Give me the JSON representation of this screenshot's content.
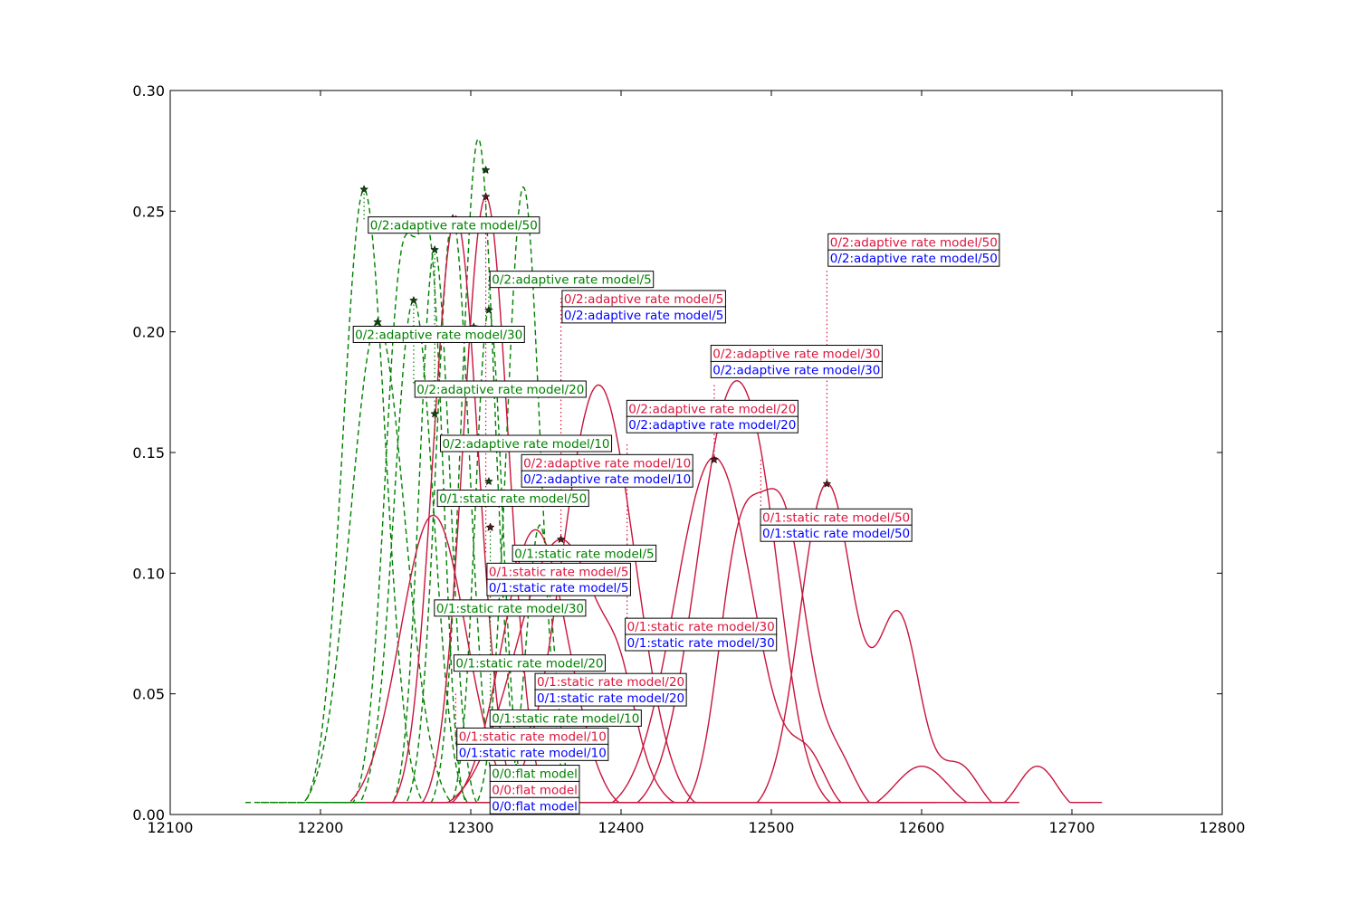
{
  "chart_data": {
    "type": "line",
    "title": "",
    "xlabel": "",
    "ylabel": "",
    "xlim": [
      12100,
      12800
    ],
    "ylim": [
      0,
      0.3
    ],
    "x_ticks": [
      "12100",
      "12200",
      "12300",
      "12400",
      "12500",
      "12600",
      "12700",
      "12800"
    ],
    "y_ticks": [
      "0.00",
      "0.05",
      "0.10",
      "0.15",
      "0.20",
      "0.25",
      "0.30"
    ],
    "grid": false,
    "legend": "none",
    "colors": {
      "green": "#008000",
      "red": "#dc143c",
      "blue": "#0000ff",
      "crimson": "#c8143c",
      "star": "#5a1a1a"
    },
    "series": [
      {
        "color": "green",
        "style": "dashed",
        "peaks": [
          [
            12229,
            0.259,
            14
          ]
        ],
        "range": [
          12150,
          12320
        ]
      },
      {
        "color": "green",
        "style": "dashed",
        "peaks": [
          [
            12238,
            0.204,
            18
          ]
        ],
        "range": [
          12160,
          12330
        ]
      },
      {
        "color": "green",
        "style": "dashed",
        "peaks": [
          [
            12255,
            0.23,
            12
          ],
          [
            12275,
            0.17,
            8
          ]
        ],
        "range": [
          12172,
          12345
        ]
      },
      {
        "color": "green",
        "style": "dashed",
        "peaks": [
          [
            12262,
            0.213,
            13
          ]
        ],
        "range": [
          12180,
          12355
        ]
      },
      {
        "color": "green",
        "style": "dashed",
        "peaks": [
          [
            12276,
            0.234,
            10
          ]
        ],
        "range": [
          12195,
          12365
        ]
      },
      {
        "color": "green",
        "style": "dashed",
        "peaks": [
          [
            12288,
            0.247,
            11
          ]
        ],
        "range": [
          12210,
          12380
        ]
      },
      {
        "color": "green",
        "style": "dashed",
        "peaks": [
          [
            12305,
            0.28,
            11
          ]
        ],
        "range": [
          12225,
          12395
        ]
      },
      {
        "color": "green",
        "style": "dashed",
        "peaks": [
          [
            12312,
            0.209,
            9
          ]
        ],
        "range": [
          12235,
          12405
        ]
      },
      {
        "color": "green",
        "style": "dashed",
        "peaks": [
          [
            12335,
            0.26,
            11
          ]
        ],
        "range": [
          12245,
          12420
        ]
      },
      {
        "color": "green",
        "style": "dashed",
        "peaks": [
          [
            12346,
            0.12,
            9
          ]
        ],
        "range": [
          12260,
          12430
        ]
      },
      {
        "color": "crimson",
        "style": "solid",
        "peaks": [
          [
            12275,
            0.124,
            22
          ]
        ],
        "range": [
          12220,
          12460
        ]
      },
      {
        "color": "crimson",
        "style": "solid",
        "peaks": [
          [
            12290,
            0.248,
            15
          ]
        ],
        "range": [
          12230,
          12470
        ]
      },
      {
        "color": "crimson",
        "style": "solid",
        "peaks": [
          [
            12310,
            0.256,
            15
          ]
        ],
        "range": [
          12240,
          12480
        ]
      },
      {
        "color": "crimson",
        "style": "solid",
        "peaks": [
          [
            12343,
            0.118,
            22
          ]
        ],
        "range": [
          12250,
          12530
        ]
      },
      {
        "color": "crimson",
        "style": "solid",
        "peaks": [
          [
            12385,
            0.178,
            24
          ]
        ],
        "range": [
          12260,
          12555
        ]
      },
      {
        "color": "crimson",
        "style": "solid",
        "peaks": [
          [
            12360,
            0.114,
            30
          ],
          [
            12400,
            0.02,
            10
          ]
        ],
        "range": [
          12265,
          12565
        ]
      },
      {
        "color": "crimson",
        "style": "solid",
        "peaks": [
          [
            12475,
            0.176,
            24
          ],
          [
            12498,
            0.02,
            12
          ]
        ],
        "range": [
          12360,
          12585
        ]
      },
      {
        "color": "crimson",
        "style": "solid",
        "peaks": [
          [
            12462,
            0.148,
            26
          ],
          [
            12525,
            0.02,
            12
          ]
        ],
        "range": [
          12360,
          12610
        ]
      },
      {
        "color": "crimson",
        "style": "solid",
        "peaks": [
          [
            12478,
            0.1,
            14
          ],
          [
            12508,
            0.12,
            16
          ],
          [
            12545,
            0.02,
            12
          ]
        ],
        "range": [
          12380,
          12630
        ]
      },
      {
        "color": "crimson",
        "style": "solid",
        "peaks": [
          [
            12537,
            0.137,
            18
          ],
          [
            12585,
            0.08,
            14
          ],
          [
            12625,
            0.02,
            13
          ]
        ],
        "range": [
          12440,
          12665
        ]
      },
      {
        "color": "crimson",
        "style": "solid",
        "peaks": [
          [
            12677,
            0.02,
            13
          ],
          [
            12600,
            0.02,
            18
          ]
        ],
        "range": [
          12560,
          12720
        ]
      }
    ],
    "markers": [
      {
        "x": 12229,
        "y": 0.259,
        "color": "green"
      },
      {
        "x": 12238,
        "y": 0.204,
        "color": "green"
      },
      {
        "x": 12262,
        "y": 0.213,
        "color": "green"
      },
      {
        "x": 12276,
        "y": 0.234,
        "color": "green"
      },
      {
        "x": 12276,
        "y": 0.166,
        "color": "green"
      },
      {
        "x": 12288,
        "y": 0.247,
        "color": "green"
      },
      {
        "x": 12302,
        "y": 0.202,
        "color": "green"
      },
      {
        "x": 12310,
        "y": 0.267,
        "color": "green"
      },
      {
        "x": 12312,
        "y": 0.209,
        "color": "green"
      },
      {
        "x": 12312,
        "y": 0.138,
        "color": "green"
      },
      {
        "x": 12313,
        "y": 0.119,
        "color": "green"
      },
      {
        "x": 12310,
        "y": 0.256,
        "color": "star"
      },
      {
        "x": 12313,
        "y": 0.119,
        "color": "star"
      },
      {
        "x": 12360,
        "y": 0.114,
        "color": "star"
      },
      {
        "x": 12462,
        "y": 0.147,
        "color": "star"
      },
      {
        "x": 12537,
        "y": 0.137,
        "color": "star"
      }
    ],
    "guides": [
      {
        "x": 12229,
        "y0": 0.259,
        "y1": 0.246,
        "color": "green"
      },
      {
        "x": 12238,
        "y0": 0.204,
        "y1": 0.201,
        "color": "green"
      },
      {
        "x": 12262,
        "y0": 0.213,
        "y1": 0.178,
        "color": "green"
      },
      {
        "x": 12276,
        "y0": 0.234,
        "y1": 0.155,
        "color": "green"
      },
      {
        "x": 12312,
        "y0": 0.209,
        "y1": 0.222,
        "color": "green"
      },
      {
        "x": 12313,
        "y0": 0.119,
        "y1": 0.042,
        "color": "green"
      },
      {
        "x": 12310,
        "y0": 0.256,
        "y1": 0.108,
        "color": "red"
      },
      {
        "x": 12360,
        "y0": 0.114,
        "y1": 0.214,
        "color": "red"
      },
      {
        "x": 12404,
        "y0": 0.114,
        "y1": 0.074,
        "color": "red"
      },
      {
        "x": 12404,
        "y0": 0.114,
        "y1": 0.154,
        "color": "red"
      },
      {
        "x": 12462,
        "y0": 0.147,
        "y1": 0.178,
        "color": "red"
      },
      {
        "x": 12493,
        "y0": 0.147,
        "y1": 0.125,
        "color": "red"
      },
      {
        "x": 12537,
        "y0": 0.137,
        "y1": 0.226,
        "color": "red"
      },
      {
        "x": 12290,
        "y0": 0.05,
        "y1": 0.029,
        "color": "red"
      }
    ],
    "annotations": [
      {
        "text": "0/2:adaptive rate model/50",
        "color": "green",
        "x": 12233,
        "y": 0.242
      },
      {
        "text": "0/2:adaptive rate model/5",
        "color": "green",
        "x": 12314,
        "y": 0.2195
      },
      {
        "text": "0/2:adaptive rate model/5",
        "color": "red",
        "x": 12362,
        "y": 0.2115
      },
      {
        "text": "0/2:adaptive rate model/5",
        "color": "blue",
        "x": 12362,
        "y": 0.2048
      },
      {
        "text": "0/2:adaptive rate model/50",
        "color": "red",
        "x": 12539,
        "y": 0.235
      },
      {
        "text": "0/2:adaptive rate model/50",
        "color": "blue",
        "x": 12539,
        "y": 0.2283
      },
      {
        "text": "0/2:adaptive rate model/30",
        "color": "green",
        "x": 12223,
        "y": 0.1967
      },
      {
        "text": "0/2:adaptive rate model/30",
        "color": "red",
        "x": 12461,
        "y": 0.1888
      },
      {
        "text": "0/2:adaptive rate model/30",
        "color": "blue",
        "x": 12461,
        "y": 0.1821
      },
      {
        "text": "0/2:adaptive rate model/20",
        "color": "green",
        "x": 12264,
        "y": 0.174
      },
      {
        "text": "0/2:adaptive rate model/20",
        "color": "red",
        "x": 12405,
        "y": 0.166
      },
      {
        "text": "0/2:adaptive rate model/20",
        "color": "blue",
        "x": 12405,
        "y": 0.1593
      },
      {
        "text": "0/2:adaptive rate model/10",
        "color": "green",
        "x": 12281,
        "y": 0.1515
      },
      {
        "text": "0/2:adaptive rate model/10",
        "color": "red",
        "x": 12335,
        "y": 0.1435
      },
      {
        "text": "0/2:adaptive rate model/10",
        "color": "blue",
        "x": 12335,
        "y": 0.1368
      },
      {
        "text": "0/1:static rate model/50",
        "color": "green",
        "x": 12279,
        "y": 0.1288
      },
      {
        "text": "0/1:static rate model/50",
        "color": "red",
        "x": 12494,
        "y": 0.121
      },
      {
        "text": "0/1:static rate model/50",
        "color": "blue",
        "x": 12494,
        "y": 0.1143
      },
      {
        "text": "0/1:static rate model/5",
        "color": "green",
        "x": 12329,
        "y": 0.106
      },
      {
        "text": "0/1:static rate model/5",
        "color": "red",
        "x": 12312,
        "y": 0.0985
      },
      {
        "text": "0/1:static rate model/5",
        "color": "blue",
        "x": 12312,
        "y": 0.0918
      },
      {
        "text": "0/1:static rate model/30",
        "color": "green",
        "x": 12277,
        "y": 0.0833
      },
      {
        "text": "0/1:static rate model/30",
        "color": "red",
        "x": 12404,
        "y": 0.0757
      },
      {
        "text": "0/1:static rate model/30",
        "color": "blue",
        "x": 12404,
        "y": 0.069
      },
      {
        "text": "0/1:static rate model/20",
        "color": "green",
        "x": 12290,
        "y": 0.0605
      },
      {
        "text": "0/1:static rate model/20",
        "color": "red",
        "x": 12344,
        "y": 0.0528
      },
      {
        "text": "0/1:static rate model/20",
        "color": "blue",
        "x": 12344,
        "y": 0.0461
      },
      {
        "text": "0/1:static rate model/10",
        "color": "green",
        "x": 12314,
        "y": 0.0377
      },
      {
        "text": "0/1:static rate model/10",
        "color": "red",
        "x": 12292,
        "y": 0.0302
      },
      {
        "text": "0/1:static rate model/10",
        "color": "blue",
        "x": 12292,
        "y": 0.0235
      },
      {
        "text": "0/0:flat model",
        "color": "green",
        "x": 12314,
        "y": 0.0148
      },
      {
        "text": "0/0:flat model",
        "color": "red",
        "x": 12314,
        "y": 0.0081
      },
      {
        "text": "0/0:flat model",
        "color": "blue",
        "x": 12314,
        "y": 0.0014
      }
    ]
  }
}
